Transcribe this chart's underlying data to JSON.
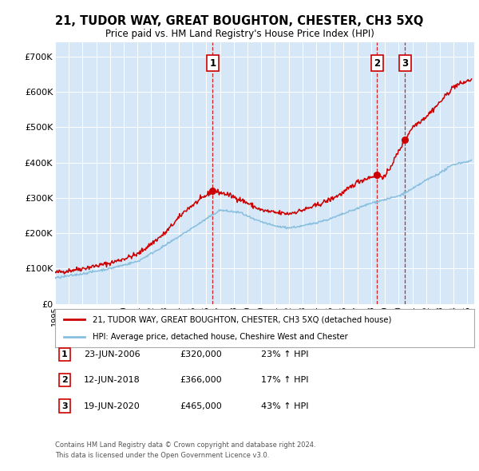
{
  "title": "21, TUDOR WAY, GREAT BOUGHTON, CHESTER, CH3 5XQ",
  "subtitle": "Price paid vs. HM Land Registry's House Price Index (HPI)",
  "ylabel_ticks": [
    "£0",
    "£100K",
    "£200K",
    "£300K",
    "£400K",
    "£500K",
    "£600K",
    "£700K"
  ],
  "ytick_values": [
    0,
    100000,
    200000,
    300000,
    400000,
    500000,
    600000,
    700000
  ],
  "ylim": [
    0,
    740000
  ],
  "xlim_start": 1995.0,
  "xlim_end": 2025.5,
  "background_color": "#d6e8f7",
  "fig_bg_color": "#ffffff",
  "red_line_color": "#cc0000",
  "blue_line_color": "#88bfdf",
  "sale_dates": [
    2006.47,
    2018.44,
    2020.46
  ],
  "sale_prices": [
    320000,
    366000,
    465000
  ],
  "sale_labels": [
    "1",
    "2",
    "3"
  ],
  "sale_info": [
    {
      "label": "1",
      "date": "23-JUN-2006",
      "price": "£320,000",
      "hpi": "23% ↑ HPI"
    },
    {
      "label": "2",
      "date": "12-JUN-2018",
      "price": "£366,000",
      "hpi": "17% ↑ HPI"
    },
    {
      "label": "3",
      "date": "19-JUN-2020",
      "price": "£465,000",
      "hpi": "43% ↑ HPI"
    }
  ],
  "legend_line1": "21, TUDOR WAY, GREAT BOUGHTON, CHESTER, CH3 5XQ (detached house)",
  "legend_line2": "HPI: Average price, detached house, Cheshire West and Chester",
  "footer1": "Contains HM Land Registry data © Crown copyright and database right 2024.",
  "footer2": "This data is licensed under the Open Government Licence v3.0."
}
